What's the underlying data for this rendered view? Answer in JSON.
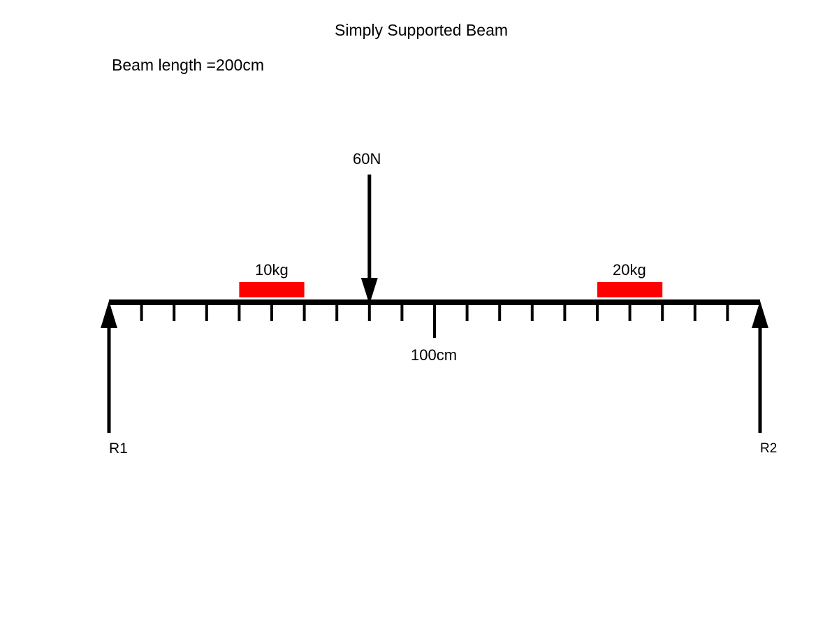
{
  "title": "Simply Supported Beam",
  "beam_length_label": "Beam length =200cm",
  "point_force": {
    "label": "60N",
    "position_cm": 80,
    "direction": "down"
  },
  "masses": [
    {
      "label": "10kg",
      "start_cm": 40,
      "end_cm": 60
    },
    {
      "label": "20kg",
      "start_cm": 150,
      "end_cm": 170
    }
  ],
  "midpoint": {
    "label": "100cm",
    "position_cm": 100
  },
  "supports": [
    {
      "label": "R1",
      "position_cm": 0
    },
    {
      "label": "R2",
      "position_cm": 200
    }
  ],
  "beam": {
    "length_cm": 200,
    "tick_spacing_cm": 10
  },
  "colors": {
    "line": "#000000",
    "mass": "#ff0000",
    "background": "#ffffff"
  }
}
